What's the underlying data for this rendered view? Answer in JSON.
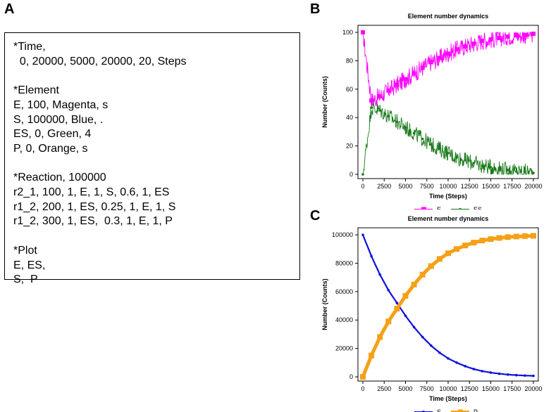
{
  "panels": {
    "a": "A",
    "b": "B",
    "c": "C"
  },
  "config": {
    "lines": [
      "*Time,",
      "  0, 20000, 5000, 20000, 20, Steps",
      "",
      "*Element",
      "E, 100, Magenta, s",
      "S, 100000, Blue, .",
      "ES, 0, Green, 4",
      "P, 0, Orange, s",
      "",
      "*Reaction, 100000",
      "r2_1, 100, 1, E, 1, S, 0.6, 1, ES",
      "r1_2, 200, 1, ES, 0.25, 1, E, 1, S",
      "r1_2, 300, 1, ES,  0.3, 1, E, 1, P",
      "",
      "*Plot",
      "E, ES,",
      "S,  P"
    ]
  },
  "colors": {
    "E": "#ff00ff",
    "ES": "#1a7a1a",
    "S": "#1010dd",
    "P": "#f5a016"
  },
  "chart_data": [
    {
      "type": "line",
      "title": "Element number dynamics",
      "xlabel": "Time (Steps)",
      "ylabel": "Number (Counts)",
      "xlim": [
        0,
        20000
      ],
      "ylim": [
        0,
        100
      ],
      "xticks": [
        0,
        2500,
        5000,
        7500,
        10000,
        12500,
        15000,
        17500,
        20000
      ],
      "yticks": [
        0,
        20,
        40,
        60,
        80,
        100
      ],
      "legend": [
        "E",
        "ES"
      ],
      "legend_position": "bottom",
      "series": [
        {
          "name": "E",
          "x": [
            0,
            1000,
            2000,
            3000,
            4000,
            5000,
            6000,
            7000,
            8000,
            9000,
            10000,
            11000,
            12000,
            13000,
            14000,
            15000,
            16000,
            17000,
            18000,
            19000,
            20000
          ],
          "values": [
            100,
            52,
            55,
            59,
            63,
            67,
            71,
            75,
            79,
            82,
            85,
            88,
            90,
            92,
            94,
            95,
            96,
            97,
            98,
            98,
            99
          ]
        },
        {
          "name": "ES",
          "x": [
            0,
            1000,
            2000,
            3000,
            4000,
            5000,
            6000,
            7000,
            8000,
            9000,
            10000,
            11000,
            12000,
            13000,
            14000,
            15000,
            16000,
            17000,
            18000,
            19000,
            20000
          ],
          "values": [
            0,
            47,
            45,
            41,
            37,
            33,
            29,
            25,
            21,
            18,
            15,
            12,
            10,
            8,
            6,
            5,
            4,
            3,
            2,
            2,
            1
          ]
        }
      ]
    },
    {
      "type": "line",
      "title": "Element number dynamics",
      "xlabel": "Time (Steps)",
      "ylabel": "Number (Counts)",
      "xlim": [
        0,
        20000
      ],
      "ylim": [
        0,
        100000
      ],
      "xticks": [
        0,
        2500,
        5000,
        7500,
        10000,
        12500,
        15000,
        17500,
        20000
      ],
      "yticks": [
        0,
        20000,
        40000,
        60000,
        80000,
        100000
      ],
      "legend": [
        "S",
        "P"
      ],
      "legend_position": "bottom",
      "series": [
        {
          "name": "S",
          "x": [
            0,
            1000,
            2000,
            3000,
            4000,
            5000,
            6000,
            7000,
            8000,
            9000,
            10000,
            11000,
            12000,
            13000,
            14000,
            15000,
            16000,
            17000,
            18000,
            19000,
            20000
          ],
          "values": [
            100000,
            85000,
            72000,
            61000,
            52000,
            43000,
            35000,
            28000,
            22000,
            17000,
            13000,
            10000,
            7500,
            5500,
            4000,
            3000,
            2200,
            1600,
            1200,
            900,
            700
          ]
        },
        {
          "name": "P",
          "x": [
            0,
            1000,
            2000,
            3000,
            4000,
            5000,
            6000,
            7000,
            8000,
            9000,
            10000,
            11000,
            12000,
            13000,
            14000,
            15000,
            16000,
            17000,
            18000,
            19000,
            20000
          ],
          "values": [
            0,
            15000,
            28000,
            39000,
            48000,
            57000,
            65000,
            72000,
            78000,
            83000,
            87000,
            90000,
            92500,
            94500,
            96000,
            97000,
            97800,
            98400,
            98800,
            99100,
            99300
          ]
        }
      ]
    }
  ]
}
